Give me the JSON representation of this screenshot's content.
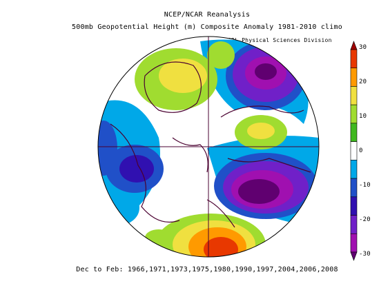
{
  "header": {
    "title_line1": "NCEP/NCAR Reanalysis",
    "title_line2": "500mb Geopotential Height (m) Composite Anomaly 1981-2010 climo",
    "credit": "NOAA/ESRL Physical Sciences Division"
  },
  "footer": {
    "caption": "Dec to Feb: 1966,1971,1973,1975,1980,1990,1997,2004,2006,2008"
  },
  "colorbar": {
    "ticks": [
      "30",
      "20",
      "10",
      "0",
      "-10",
      "-20",
      "-30"
    ],
    "colors": [
      "#a00000",
      "#e83800",
      "#ff9a00",
      "#f0e040",
      "#a0dc30",
      "#40b820",
      "#ffffff",
      "#00a8e8",
      "#2050c8",
      "#3010b0",
      "#7020c8",
      "#a010b0",
      "#600070"
    ]
  },
  "map": {
    "projection": "polar-stereographic",
    "variable": "500mb geopotential height anomaly"
  }
}
